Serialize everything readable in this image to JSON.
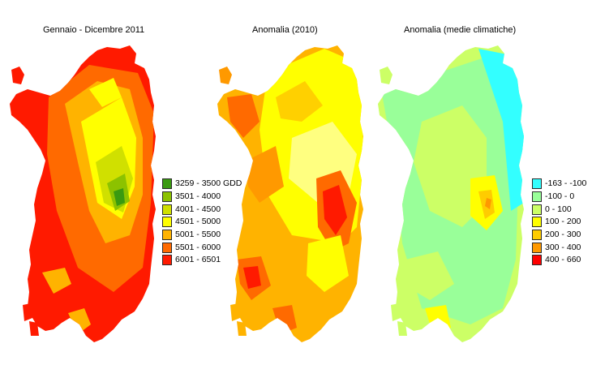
{
  "panels": [
    {
      "title": "Gennaio - Dicembre 2011",
      "legend": [
        {
          "label": "3259 - 3500 GDD",
          "color": "#3a9a10"
        },
        {
          "label": "3501 - 4000",
          "color": "#8cc200"
        },
        {
          "label": "4001 - 4500",
          "color": "#d0e000"
        },
        {
          "label": "4501 - 5000",
          "color": "#ffff00"
        },
        {
          "label": "5001 - 5500",
          "color": "#ffb300"
        },
        {
          "label": "5501 - 6000",
          "color": "#ff6a00"
        },
        {
          "label": "6001 - 6501",
          "color": "#ff1a00"
        }
      ]
    },
    {
      "title": "Anomalia (2010)"
    },
    {
      "title": "Anomalia (medie climatiche)",
      "legend": [
        {
          "label": "-163 - -100",
          "color": "#33ffff"
        },
        {
          "label": "-100 - 0",
          "color": "#99ff99"
        },
        {
          "label": "0 - 100",
          "color": "#ccff66"
        },
        {
          "label": "100 - 200",
          "color": "#ffff00"
        },
        {
          "label": "200 - 300",
          "color": "#ffcc00"
        },
        {
          "label": "300 - 400",
          "color": "#ff9900"
        },
        {
          "label": "400 - 660",
          "color": "#ff0000"
        }
      ]
    }
  ]
}
